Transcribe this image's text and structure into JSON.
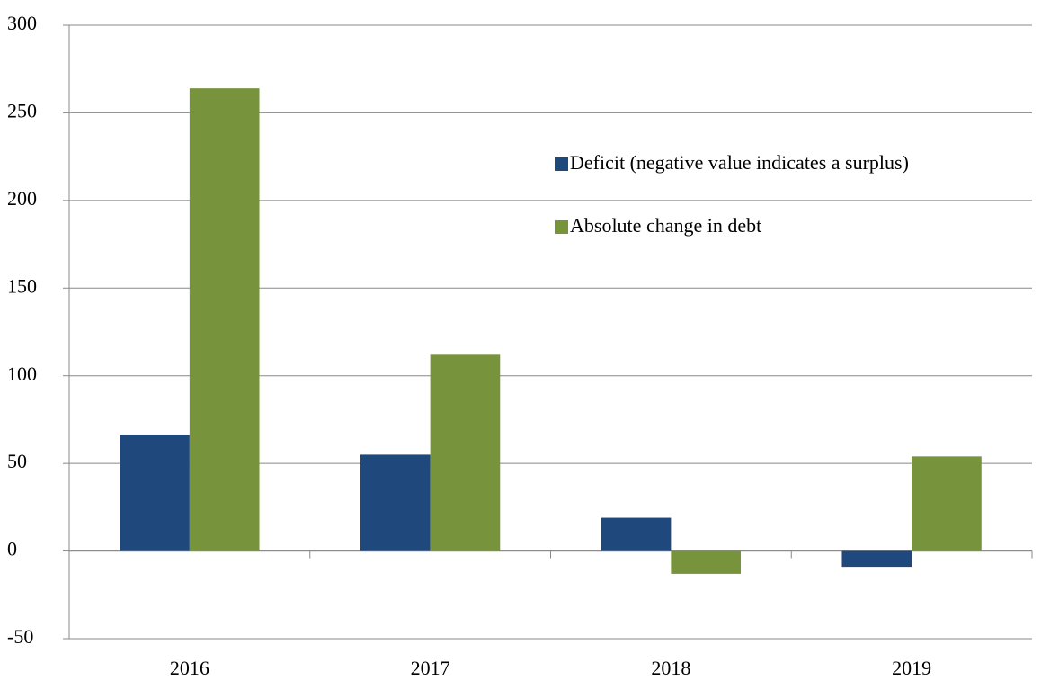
{
  "chart_data": {
    "type": "bar",
    "categories": [
      "2016",
      "2017",
      "2018",
      "2019"
    ],
    "series": [
      {
        "name": "Deficit (negative value indicates a surplus)",
        "color": "#1f497d",
        "values": [
          66,
          55,
          19,
          -9
        ]
      },
      {
        "name": "Absolute change in debt",
        "color": "#77933c",
        "values": [
          264,
          112,
          -13,
          54
        ]
      }
    ],
    "ylim": [
      -50,
      300
    ],
    "yticks": [
      -50,
      0,
      50,
      100,
      150,
      200,
      250,
      300
    ],
    "grid": true,
    "legend": "upper right"
  }
}
